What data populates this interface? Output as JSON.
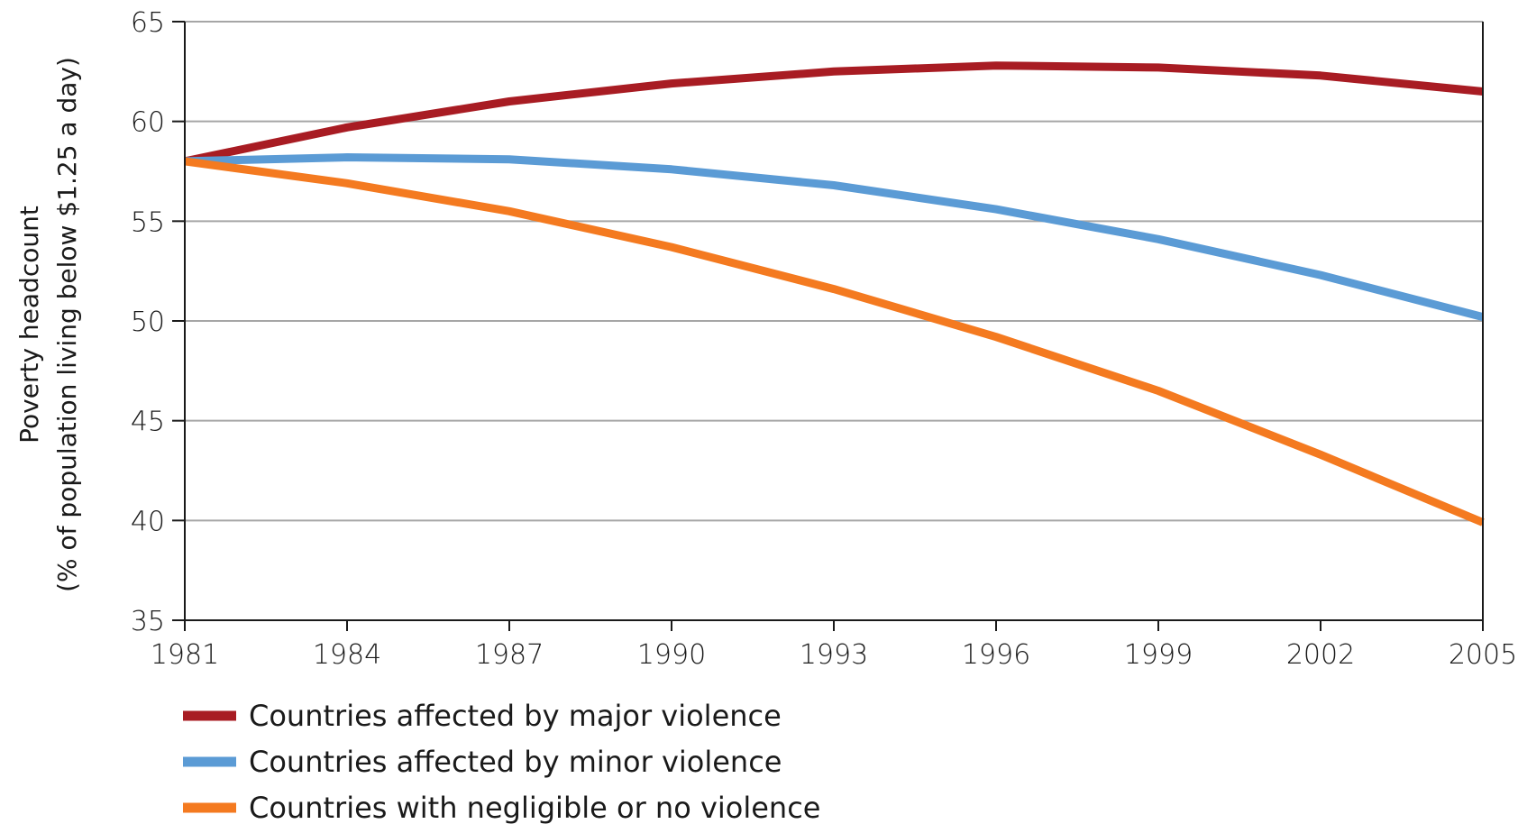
{
  "chart_data": {
    "type": "line",
    "title": "",
    "xlabel": "",
    "ylabel": "Poverty headcount",
    "ylabel_line2": "(% of population living below $1.25 a day)",
    "x": [
      1981,
      1984,
      1987,
      1990,
      1993,
      1996,
      1999,
      2002,
      2005
    ],
    "xticks": [
      "1981",
      "1984",
      "1987",
      "1990",
      "1993",
      "1996",
      "1999",
      "2002",
      "2005"
    ],
    "yticks": [
      "35",
      "40",
      "45",
      "50",
      "55",
      "60",
      "65"
    ],
    "xlim": [
      1981,
      2005
    ],
    "ylim": [
      35,
      65
    ],
    "grid": "horizontal",
    "legend_position": "bottom-left",
    "series": [
      {
        "name": "Countries affected by major violence",
        "color": "#a81c23",
        "values": [
          58.0,
          59.7,
          61.0,
          61.9,
          62.5,
          62.8,
          62.7,
          62.3,
          61.5
        ]
      },
      {
        "name": "Countries affected by minor violence",
        "color": "#5b9bd5",
        "values": [
          58.0,
          58.2,
          58.1,
          57.6,
          56.8,
          55.6,
          54.1,
          52.3,
          50.2
        ]
      },
      {
        "name": "Countries with negligible or no violence",
        "color": "#f47a20",
        "values": [
          58.0,
          56.9,
          55.5,
          53.7,
          51.6,
          49.2,
          46.5,
          43.3,
          39.9
        ]
      }
    ]
  }
}
